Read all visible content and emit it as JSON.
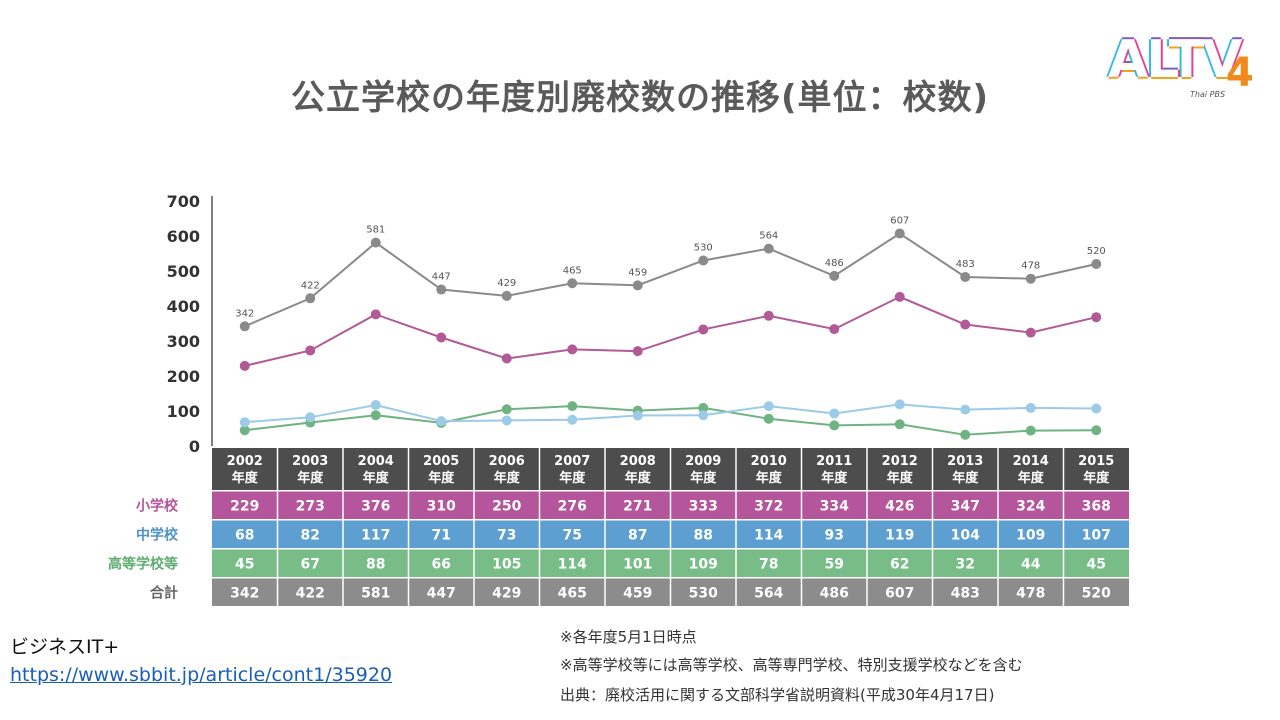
{
  "title": "公立学校の年度別廃校数の推移(単位：校数)",
  "logo": {
    "text": "ALTV",
    "number": "4",
    "sub": "Thai PBS"
  },
  "source": {
    "name": "ビジネスIT+",
    "url": "https://www.sbbit.jp/article/cont1/35920"
  },
  "notes": [
    "※各年度5月1日時点",
    "※高等学校等には高等学校、高等専門学校、特別支援学校などを含む",
    "出典：廃校活用に関する文部科学省説明資料(平成30年4月17日)"
  ],
  "colors": {
    "total": "#8a8a8a",
    "elementary": "#b15a96",
    "junior": "#9ccbe8",
    "high": "#6fb382",
    "header_bg": "#4d4d4d",
    "elementary_bg": "#b5559b",
    "junior_bg": "#5d9fd0",
    "high_bg": "#78bd87",
    "total_bg": "#8c8c8c"
  },
  "chart_data": {
    "type": "line",
    "categories": [
      "2002\n年度",
      "2003\n年度",
      "2004\n年度",
      "2005\n年度",
      "2006\n年度",
      "2007\n年度",
      "2008\n年度",
      "2009\n年度",
      "2010\n年度",
      "2011\n年度",
      "2012\n年度",
      "2013\n年度",
      "2014\n年度",
      "2015\n年度"
    ],
    "yticks": [
      0,
      100,
      200,
      300,
      400,
      500,
      600,
      700
    ],
    "ylim": [
      0,
      700
    ],
    "series": [
      {
        "key": "total",
        "name": "合計",
        "values": [
          342,
          422,
          581,
          447,
          429,
          465,
          459,
          530,
          564,
          486,
          607,
          483,
          478,
          520
        ],
        "labels_on_chart": true
      },
      {
        "key": "elementary",
        "name": "小学校",
        "values": [
          229,
          273,
          376,
          310,
          250,
          276,
          271,
          333,
          372,
          334,
          426,
          347,
          324,
          368
        ]
      },
      {
        "key": "junior",
        "name": "中学校",
        "values": [
          68,
          82,
          117,
          71,
          73,
          75,
          87,
          88,
          114,
          93,
          119,
          104,
          109,
          107
        ]
      },
      {
        "key": "high",
        "name": "高等学校等",
        "values": [
          45,
          67,
          88,
          66,
          105,
          114,
          101,
          109,
          78,
          59,
          62,
          32,
          44,
          45
        ]
      }
    ],
    "table_row_order": [
      "elementary",
      "junior",
      "high",
      "total"
    ]
  }
}
